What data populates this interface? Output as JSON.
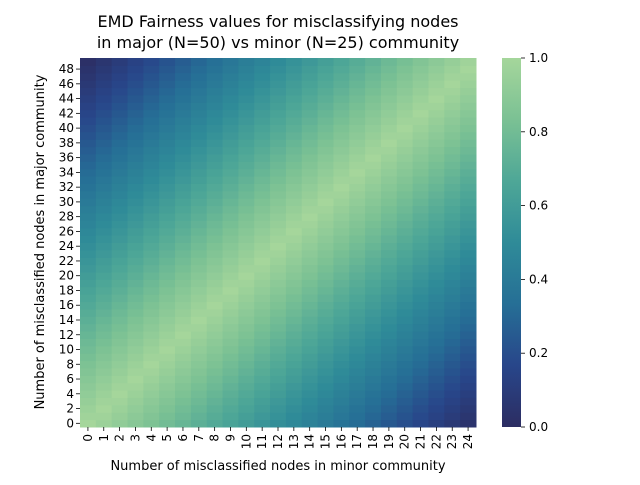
{
  "chart_data": {
    "type": "heatmap",
    "title_lines": [
      "EMD Fairness values for misclassifying nodes",
      "in major (N=50) vs minor (N=25) community"
    ],
    "xlabel": "Number of misclassified nodes in minor community",
    "ylabel": "Number of misclassified nodes in major community",
    "x_values": [
      0,
      1,
      2,
      3,
      4,
      5,
      6,
      7,
      8,
      9,
      10,
      11,
      12,
      13,
      14,
      15,
      16,
      17,
      18,
      19,
      20,
      21,
      22,
      23,
      24
    ],
    "y_values": [
      0,
      1,
      2,
      3,
      4,
      5,
      6,
      7,
      8,
      9,
      10,
      11,
      12,
      13,
      14,
      15,
      16,
      17,
      18,
      19,
      20,
      21,
      22,
      23,
      24,
      25,
      26,
      27,
      28,
      29,
      30,
      31,
      32,
      33,
      34,
      35,
      36,
      37,
      38,
      39,
      40,
      41,
      42,
      43,
      44,
      45,
      46,
      47,
      48,
      49
    ],
    "x_tick_labels": [
      "0",
      "1",
      "2",
      "3",
      "4",
      "5",
      "6",
      "7",
      "8",
      "9",
      "10",
      "11",
      "12",
      "13",
      "14",
      "15",
      "16",
      "17",
      "18",
      "19",
      "20",
      "21",
      "22",
      "23",
      "24"
    ],
    "y_tick_labels": [
      "0",
      "2",
      "4",
      "6",
      "8",
      "10",
      "12",
      "14",
      "16",
      "18",
      "20",
      "22",
      "24",
      "26",
      "28",
      "30",
      "32",
      "34",
      "36",
      "38",
      "40",
      "42",
      "44",
      "46",
      "48"
    ],
    "y_tick_values": [
      0,
      2,
      4,
      6,
      8,
      10,
      12,
      14,
      16,
      18,
      20,
      22,
      24,
      26,
      28,
      30,
      32,
      34,
      36,
      38,
      40,
      42,
      44,
      46,
      48
    ],
    "value_definition": "value = 1 - | x/25 - y/50 |",
    "colorbar": {
      "range": [
        0.0,
        1.0
      ],
      "tick_labels": [
        "0.0",
        "0.2",
        "0.4",
        "0.6",
        "0.8",
        "1.0"
      ],
      "tick_values": [
        0.0,
        0.2,
        0.4,
        0.6,
        0.8,
        1.0
      ],
      "colormap": "crest",
      "color_stops": [
        "#2c2d62",
        "#28468a",
        "#266f96",
        "#2f8b98",
        "#4ea797",
        "#7bc194",
        "#a5d69b"
      ]
    },
    "grid": false,
    "legend": "colorbar-right"
  }
}
